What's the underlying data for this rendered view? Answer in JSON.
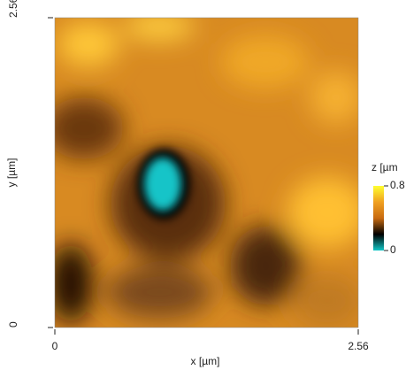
{
  "chart_data": {
    "type": "heatmap",
    "xlabel": "x [µm]",
    "ylabel": "y [µm]",
    "xlim": [
      0,
      2.56
    ],
    "ylim": [
      0,
      2.56
    ],
    "xticks": [
      0,
      2.56
    ],
    "yticks": [
      0,
      2.56
    ],
    "colorbar": {
      "title": "z [µm",
      "lim": [
        0,
        0.8
      ],
      "ticks": [
        0,
        0.8
      ],
      "colors": [
        "#10c8c8",
        "#000000",
        "#c86a10",
        "#f0a020",
        "#ffff30"
      ]
    }
  }
}
